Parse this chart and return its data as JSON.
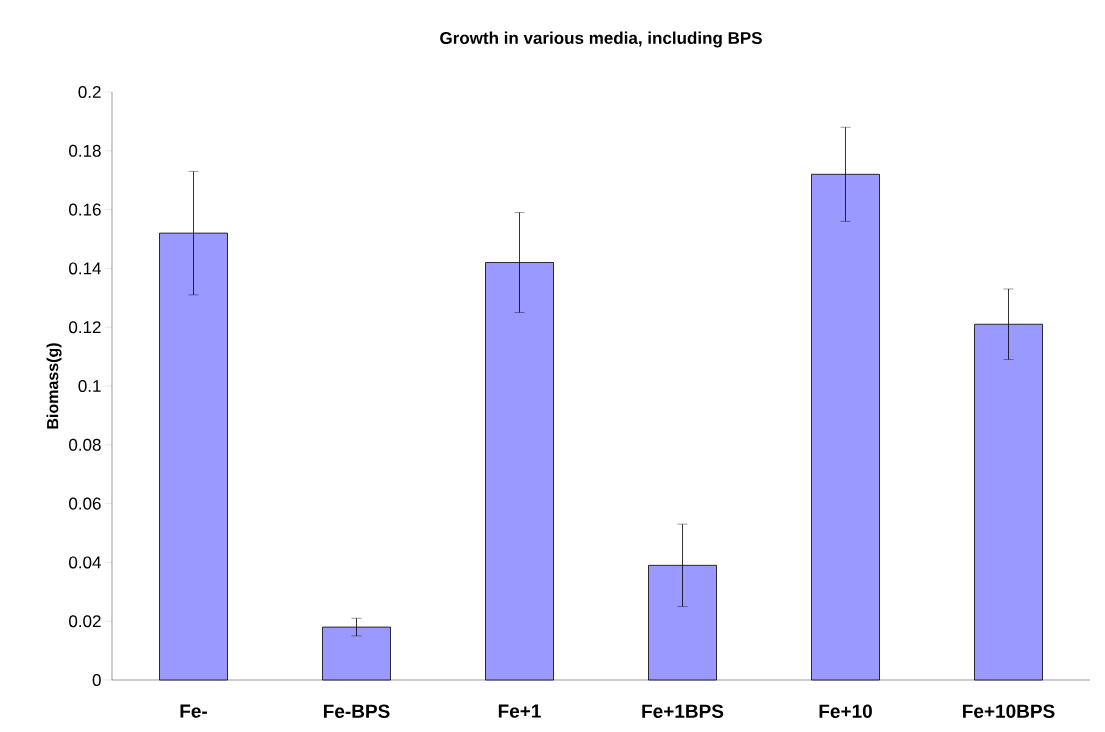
{
  "chart_data": {
    "type": "bar",
    "title": "Growth in various media, including BPS",
    "ylabel": "Biomass(g)",
    "categories": [
      "Fe-",
      "Fe-BPS",
      "Fe+1",
      "Fe+1BPS",
      "Fe+10",
      "Fe+10BPS"
    ],
    "values": [
      0.152,
      0.018,
      0.142,
      0.039,
      0.172,
      0.121
    ],
    "errors": [
      0.021,
      0.003,
      0.017,
      0.014,
      0.016,
      0.012
    ],
    "color": "#9999ff",
    "ylim": [
      0,
      0.2
    ],
    "yticks": [
      0,
      0.02,
      0.04,
      0.06,
      0.08,
      0.1,
      0.12,
      0.14,
      0.16,
      0.18,
      0.2
    ]
  }
}
